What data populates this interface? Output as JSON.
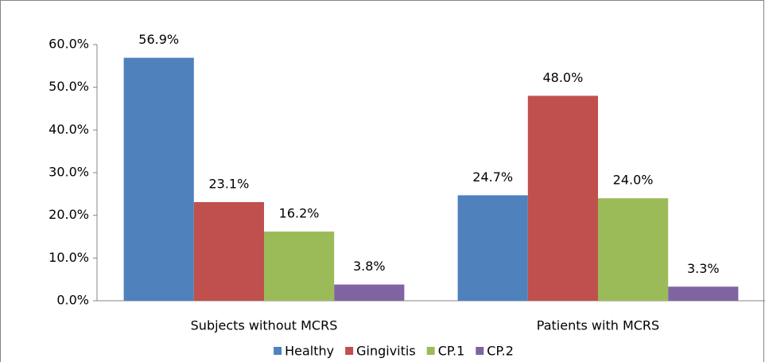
{
  "chart_data": {
    "type": "bar",
    "categories": [
      "Subjects without MCRS",
      "Patients with MCRS"
    ],
    "series": [
      {
        "name": "Healthy",
        "color": "#4f81bd",
        "values": [
          56.9,
          24.7
        ],
        "value_labels": [
          "56.9%",
          "24.7%"
        ]
      },
      {
        "name": "Gingivitis",
        "color": "#c0504d",
        "values": [
          23.1,
          48.0
        ],
        "value_labels": [
          "23.1%",
          "48.0%"
        ]
      },
      {
        "name": "CP.1",
        "color": "#9bbb59",
        "values": [
          16.2,
          24.0
        ],
        "value_labels": [
          "16.2%",
          "24.0%"
        ]
      },
      {
        "name": "CP.2",
        "color": "#8064a2",
        "values": [
          3.8,
          3.3
        ],
        "value_labels": [
          "3.8%",
          "3.3%"
        ]
      }
    ],
    "ylim": [
      0,
      60
    ],
    "yticks": [
      {
        "value": 0,
        "label": "0.0%"
      },
      {
        "value": 10,
        "label": "10.0%"
      },
      {
        "value": 20,
        "label": "20.0%"
      },
      {
        "value": 30,
        "label": "30.0%"
      },
      {
        "value": 40,
        "label": "40.0%"
      },
      {
        "value": 50,
        "label": "50.0%"
      },
      {
        "value": 60,
        "label": "60.0%"
      }
    ],
    "legend": "bottom"
  }
}
